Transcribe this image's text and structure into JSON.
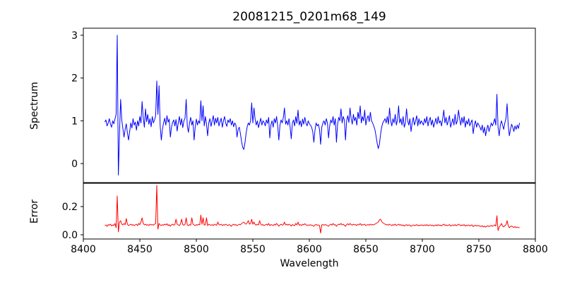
{
  "title": "20081215_0201m68_149",
  "x_axis": {
    "label": "Wavelength",
    "lim": [
      8400,
      8800
    ],
    "ticks": [
      8400,
      8450,
      8500,
      8550,
      8600,
      8650,
      8700,
      8750,
      8800
    ],
    "tick_labels": [
      "8400",
      "8450",
      "8500",
      "8550",
      "8600",
      "8650",
      "8700",
      "8750",
      "8800"
    ]
  },
  "colors": {
    "spectrum_line": "#0000ff",
    "error_line": "#ff0000",
    "axis": "#000000"
  },
  "chart_data": [
    {
      "type": "line",
      "name": "Spectrum",
      "ylabel": "Spectrum",
      "color": "#0000ff",
      "ylim": [
        -0.445,
        3.165
      ],
      "yticks": [
        0,
        1,
        2,
        3
      ],
      "ytick_labels": [
        "0",
        "1",
        "2",
        "3"
      ],
      "x_start": 8419,
      "x_step": 1,
      "values": [
        0.97,
        1.02,
        0.88,
        0.95,
        1.05,
        0.92,
        0.85,
        1.0,
        0.93,
        1.04,
        1.15,
        3.0,
        -0.27,
        0.7,
        1.5,
        1.02,
        0.82,
        0.62,
        0.8,
        0.93,
        0.72,
        0.55,
        0.75,
        0.95,
        0.83,
        1.05,
        0.9,
        0.97,
        0.78,
        1.0,
        0.88,
        1.1,
        0.95,
        1.45,
        1.08,
        0.85,
        1.28,
        0.98,
        1.15,
        0.92,
        1.05,
        0.86,
        1.1,
        0.95,
        1.02,
        1.12,
        1.93,
        1.15,
        1.82,
        0.88,
        0.55,
        0.8,
        0.95,
        1.06,
        0.9,
        1.12,
        0.97,
        1.04,
        0.62,
        0.85,
        0.96,
        1.02,
        0.88,
        1.03,
        0.76,
        0.95,
        1.1,
        0.9,
        1.05,
        0.84,
        1.0,
        1.06,
        1.5,
        0.88,
        0.73,
        0.95,
        1.08,
        0.9,
        1.0,
        0.55,
        0.85,
        1.04,
        0.9,
        1.0,
        0.94,
        1.47,
        1.0,
        1.35,
        0.88,
        1.1,
        0.92,
        0.65,
        0.95,
        1.05,
        0.87,
        1.0,
        1.12,
        0.9,
        1.06,
        0.95,
        1.08,
        0.88,
        0.98,
        1.06,
        0.85,
        1.0,
        1.1,
        0.94,
        0.87,
        1.02,
        0.96,
        1.05,
        0.9,
        1.0,
        0.86,
        0.95,
        0.9,
        0.62,
        0.8,
        0.85,
        0.7,
        0.52,
        0.38,
        0.33,
        0.48,
        0.7,
        0.86,
        0.95,
        0.9,
        1.0,
        1.42,
        0.95,
        1.3,
        1.04,
        0.9,
        1.0,
        0.84,
        0.95,
        1.06,
        0.9,
        1.0,
        0.96,
        0.88,
        1.02,
        0.94,
        1.08,
        0.6,
        0.9,
        1.0,
        0.85,
        1.05,
        0.95,
        1.1,
        0.88,
        0.55,
        0.9,
        1.02,
        0.95,
        1.08,
        1.3,
        0.92,
        1.0,
        0.9,
        1.05,
        0.85,
        0.58,
        0.95,
        1.02,
        0.88,
        1.1,
        0.94,
        1.25,
        0.9,
        1.0,
        0.86,
        1.04,
        0.92,
        1.08,
        0.95,
        0.88,
        1.0,
        0.93,
        0.9,
        0.85,
        0.75,
        0.5,
        0.78,
        0.95,
        0.88,
        0.92,
        0.8,
        0.45,
        0.85,
        0.95,
        1.0,
        0.9,
        1.05,
        0.95,
        0.6,
        0.88,
        1.02,
        0.95,
        1.1,
        0.9,
        1.05,
        0.5,
        0.92,
        1.08,
        1.0,
        1.28,
        0.95,
        1.1,
        1.02,
        0.55,
        1.0,
        1.12,
        0.96,
        1.3,
        1.05,
        0.92,
        1.15,
        1.0,
        1.08,
        0.9,
        1.2,
        1.05,
        1.35,
        0.95,
        1.1,
        1.0,
        1.25,
        0.9,
        1.05,
        1.12,
        0.98,
        1.2,
        1.0,
        0.95,
        0.88,
        0.8,
        0.65,
        0.48,
        0.35,
        0.45,
        0.68,
        0.85,
        0.95,
        1.0,
        1.05,
        0.95,
        1.1,
        0.92,
        1.3,
        1.0,
        0.88,
        1.05,
        0.95,
        1.15,
        0.9,
        1.02,
        1.35,
        0.95,
        1.05,
        0.9,
        1.1,
        0.85,
        0.95,
        1.28,
        1.0,
        0.9,
        1.05,
        0.75,
        0.95,
        1.08,
        0.9,
        1.0,
        1.12,
        0.88,
        1.05,
        0.92,
        1.0,
        0.95,
        0.9,
        1.05,
        0.95,
        1.1,
        0.88,
        1.0,
        1.08,
        0.9,
        1.02,
        0.85,
        0.95,
        1.06,
        0.92,
        1.1,
        0.95,
        1.0,
        0.88,
        1.05,
        1.25,
        0.95,
        1.08,
        0.9,
        1.0,
        1.12,
        0.85,
        0.95,
        1.05,
        0.9,
        1.15,
        0.92,
        1.0,
        1.25,
        1.05,
        0.9,
        1.08,
        0.95,
        1.1,
        0.85,
        1.0,
        0.92,
        1.05,
        0.88,
        0.96,
        1.02,
        0.7,
        0.9,
        1.0,
        0.85,
        0.95,
        0.9,
        0.85,
        0.78,
        0.9,
        0.72,
        0.85,
        0.65,
        0.8,
        0.9,
        0.75,
        0.85,
        0.95,
        0.88,
        0.95,
        1.05,
        0.9,
        1.62,
        0.85,
        0.65,
        0.9,
        1.0,
        0.9,
        0.8,
        0.95,
        1.05,
        1.4,
        0.9,
        0.65,
        0.8,
        0.92,
        0.85,
        0.75,
        0.88,
        0.8,
        0.9,
        0.82,
        0.95
      ]
    },
    {
      "type": "line",
      "name": "Error",
      "ylabel": "Error",
      "color": "#ff0000",
      "ylim": [
        -0.03,
        0.365
      ],
      "yticks": [
        0.0,
        0.2
      ],
      "ytick_labels": [
        "0.0",
        "0.2"
      ],
      "x_start": 8419,
      "x_step": 1,
      "values": [
        0.065,
        0.07,
        0.06,
        0.072,
        0.068,
        0.075,
        0.063,
        0.07,
        0.066,
        0.08,
        0.05,
        0.275,
        0.02,
        0.09,
        0.1,
        0.075,
        0.07,
        0.08,
        0.072,
        0.115,
        0.075,
        0.065,
        0.07,
        0.075,
        0.068,
        0.072,
        0.065,
        0.07,
        0.075,
        0.065,
        0.08,
        0.072,
        0.09,
        0.12,
        0.08,
        0.07,
        0.075,
        0.068,
        0.072,
        0.065,
        0.075,
        0.07,
        0.072,
        0.068,
        0.075,
        0.08,
        0.35,
        0.04,
        0.08,
        0.07,
        0.065,
        0.072,
        0.068,
        0.075,
        0.07,
        0.078,
        0.065,
        0.072,
        0.06,
        0.07,
        0.075,
        0.068,
        0.072,
        0.11,
        0.075,
        0.07,
        0.065,
        0.078,
        0.11,
        0.072,
        0.068,
        0.075,
        0.12,
        0.07,
        0.065,
        0.072,
        0.068,
        0.12,
        0.075,
        0.07,
        0.065,
        0.072,
        0.068,
        0.075,
        0.07,
        0.14,
        0.075,
        0.12,
        0.068,
        0.072,
        0.12,
        0.065,
        0.075,
        0.07,
        0.068,
        0.072,
        0.065,
        0.075,
        0.07,
        0.068,
        0.09,
        0.072,
        0.07,
        0.075,
        0.065,
        0.072,
        0.068,
        0.075,
        0.07,
        0.065,
        0.072,
        0.068,
        0.06,
        0.07,
        0.075,
        0.068,
        0.072,
        0.065,
        0.07,
        0.075,
        0.07,
        0.08,
        0.085,
        0.09,
        0.08,
        0.075,
        0.085,
        0.1,
        0.075,
        0.08,
        0.11,
        0.075,
        0.09,
        0.072,
        0.068,
        0.075,
        0.07,
        0.1,
        0.075,
        0.068,
        0.072,
        0.065,
        0.07,
        0.075,
        0.068,
        0.08,
        0.065,
        0.072,
        0.07,
        0.065,
        0.075,
        0.068,
        0.08,
        0.072,
        0.06,
        0.07,
        0.075,
        0.068,
        0.072,
        0.09,
        0.07,
        0.075,
        0.068,
        0.075,
        0.07,
        0.062,
        0.072,
        0.068,
        0.065,
        0.08,
        0.07,
        0.09,
        0.068,
        0.072,
        0.065,
        0.075,
        0.07,
        0.078,
        0.072,
        0.065,
        0.07,
        0.068,
        0.07,
        0.068,
        0.065,
        0.06,
        0.07,
        0.072,
        0.068,
        0.07,
        0.065,
        0.012,
        0.07,
        0.072,
        0.068,
        0.072,
        0.07,
        0.065,
        0.06,
        0.07,
        0.075,
        0.068,
        0.08,
        0.07,
        0.072,
        0.06,
        0.07,
        0.075,
        0.072,
        0.08,
        0.07,
        0.075,
        0.068,
        0.06,
        0.072,
        0.078,
        0.07,
        0.08,
        0.072,
        0.068,
        0.075,
        0.07,
        0.072,
        0.065,
        0.075,
        0.07,
        0.08,
        0.068,
        0.072,
        0.07,
        0.075,
        0.065,
        0.07,
        0.072,
        0.068,
        0.075,
        0.07,
        0.072,
        0.07,
        0.075,
        0.08,
        0.085,
        0.09,
        0.105,
        0.11,
        0.095,
        0.085,
        0.08,
        0.075,
        0.07,
        0.072,
        0.068,
        0.075,
        0.07,
        0.065,
        0.072,
        0.068,
        0.075,
        0.065,
        0.07,
        0.075,
        0.068,
        0.072,
        0.065,
        0.07,
        0.062,
        0.068,
        0.072,
        0.065,
        0.07,
        0.068,
        0.06,
        0.065,
        0.07,
        0.065,
        0.068,
        0.072,
        0.064,
        0.068,
        0.065,
        0.07,
        0.068,
        0.065,
        0.07,
        0.066,
        0.072,
        0.064,
        0.068,
        0.07,
        0.065,
        0.068,
        0.062,
        0.066,
        0.07,
        0.064,
        0.072,
        0.066,
        0.068,
        0.063,
        0.07,
        0.075,
        0.066,
        0.07,
        0.064,
        0.068,
        0.072,
        0.062,
        0.066,
        0.07,
        0.065,
        0.072,
        0.064,
        0.068,
        0.075,
        0.07,
        0.064,
        0.07,
        0.066,
        0.072,
        0.062,
        0.068,
        0.065,
        0.07,
        0.063,
        0.067,
        0.07,
        0.058,
        0.064,
        0.068,
        0.062,
        0.066,
        0.063,
        0.062,
        0.058,
        0.064,
        0.056,
        0.062,
        0.054,
        0.06,
        0.064,
        0.058,
        0.062,
        0.066,
        0.06,
        0.065,
        0.07,
        0.062,
        0.135,
        0.03,
        0.055,
        0.065,
        0.08,
        0.062,
        0.056,
        0.065,
        0.07,
        0.1,
        0.065,
        0.05,
        0.058,
        0.062,
        0.056,
        0.052,
        0.058,
        0.05,
        0.055,
        0.05,
        0.052
      ]
    }
  ]
}
